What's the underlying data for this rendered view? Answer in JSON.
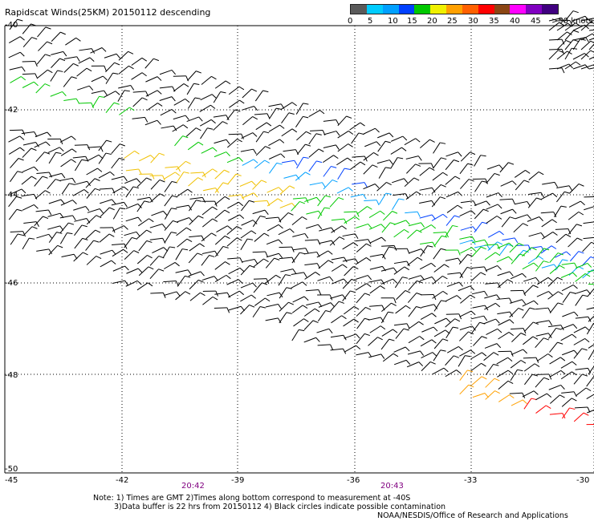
{
  "title": "Rapidscat Winds(25KM) 20150112 descending",
  "legend": {
    "labels": [
      "0",
      "5",
      "10",
      "15",
      "20",
      "25",
      "30",
      "35",
      "40",
      "45",
      ">50 knots"
    ],
    "colors": [
      "#5a5a5a",
      "#00ccff",
      "#00a0ff",
      "#0040ff",
      "#00c800",
      "#f0f000",
      "#ffa000",
      "#ff6000",
      "#ff0000",
      "#8b4513",
      "#ff00ff",
      "#8000c0",
      "#400080"
    ]
  },
  "axes": {
    "lat_labels": [
      "-40",
      "-42",
      "-44",
      "-46",
      "-48",
      "-50"
    ],
    "lon_labels": [
      "-45",
      "-42",
      "-39",
      "-36",
      "-33",
      "-30"
    ]
  },
  "times": [
    "20:42",
    "20:43"
  ],
  "notes": {
    "line1": "Note: 1) Times are GMT 2)Times along bottom correspond to measurement at -40S",
    "line2": "3)Data buffer is 22 hrs from 20150112 4) Black circles indicate possible contamination"
  },
  "credit": "NOAA/NESDIS/Office of Research and Applications"
}
